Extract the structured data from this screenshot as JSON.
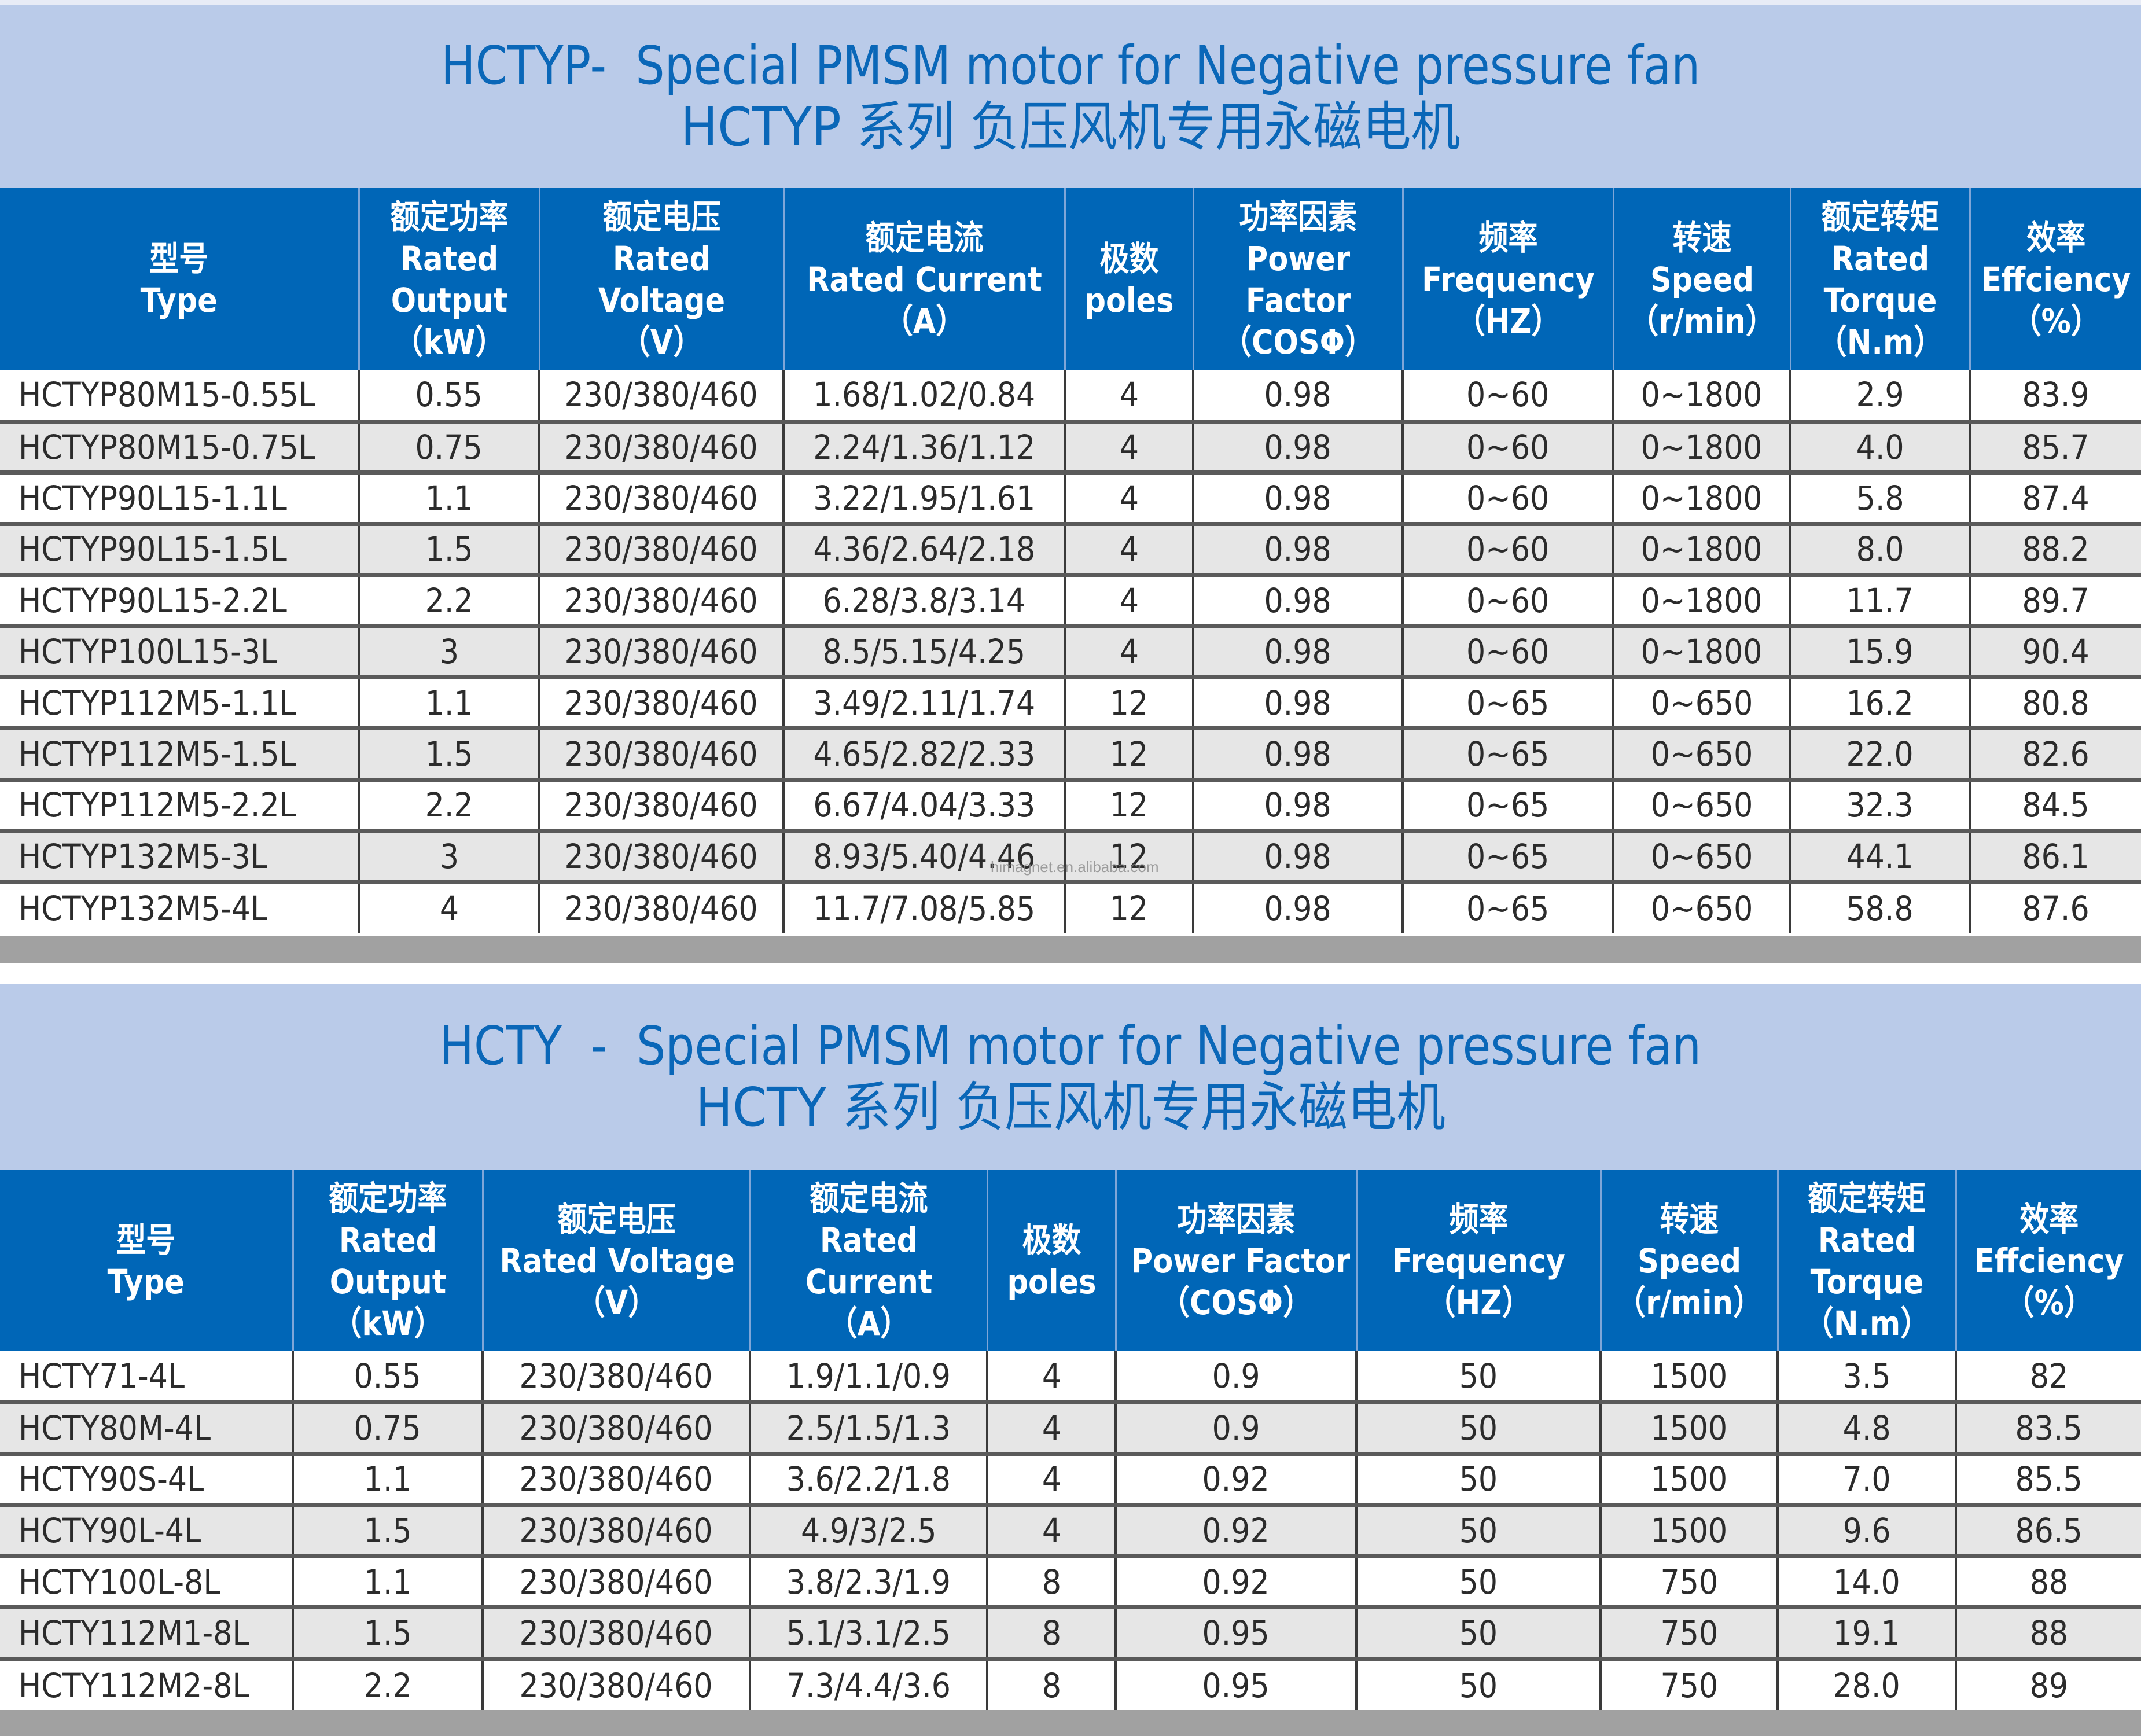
{
  "colors": {
    "title_band_bg": "#bacbe9",
    "title_text": "#0a67b8",
    "header_bg": "#0066b7",
    "header_text": "#ffffff",
    "row_even_bg": "#e6e6e6",
    "row_odd_bg": "#ffffff",
    "footer_band": "#a1a1a1"
  },
  "watermark": "himagnet.en.alibaba.com",
  "tables": [
    {
      "title_en": "HCTYP-  Special PMSM motor for Negative pressure fan",
      "title_cn": "HCTYP 系列 负压风机专用永磁电机",
      "headers": [
        {
          "lines": [
            "型号",
            "Type"
          ]
        },
        {
          "lines": [
            "额定功率",
            "Rated",
            "Output",
            "（kW）"
          ]
        },
        {
          "lines": [
            "额定电压",
            "Rated",
            "Voltage",
            "（V）"
          ]
        },
        {
          "lines": [
            "额定电流",
            "Rated Current",
            "（A）"
          ]
        },
        {
          "lines": [
            "极数",
            "poles"
          ]
        },
        {
          "lines": [
            "功率因素",
            "Power",
            "Factor",
            "（COSΦ）"
          ]
        },
        {
          "lines": [
            "频率",
            "Frequency",
            "（HZ）"
          ]
        },
        {
          "lines": [
            "转速",
            "Speed",
            "（r/min）"
          ]
        },
        {
          "lines": [
            "额定转矩",
            "Rated",
            "Torque",
            "（N.m）"
          ]
        },
        {
          "lines": [
            "效率",
            "Effciency",
            "（%）"
          ]
        }
      ],
      "rows": [
        [
          "HCTYP80M15-0.55L",
          "0.55",
          "230/380/460",
          "1.68/1.02/0.84",
          "4",
          "0.98",
          "0~60",
          "0~1800",
          "2.9",
          "83.9"
        ],
        [
          "HCTYP80M15-0.75L",
          "0.75",
          "230/380/460",
          "2.24/1.36/1.12",
          "4",
          "0.98",
          "0~60",
          "0~1800",
          "4.0",
          "85.7"
        ],
        [
          "HCTYP90L15-1.1L",
          "1.1",
          "230/380/460",
          "3.22/1.95/1.61",
          "4",
          "0.98",
          "0~60",
          "0~1800",
          "5.8",
          "87.4"
        ],
        [
          "HCTYP90L15-1.5L",
          "1.5",
          "230/380/460",
          "4.36/2.64/2.18",
          "4",
          "0.98",
          "0~60",
          "0~1800",
          "8.0",
          "88.2"
        ],
        [
          "HCTYP90L15-2.2L",
          "2.2",
          "230/380/460",
          "6.28/3.8/3.14",
          "4",
          "0.98",
          "0~60",
          "0~1800",
          "11.7",
          "89.7"
        ],
        [
          "HCTYP100L15-3L",
          "3",
          "230/380/460",
          "8.5/5.15/4.25",
          "4",
          "0.98",
          "0~60",
          "0~1800",
          "15.9",
          "90.4"
        ],
        [
          "HCTYP112M5-1.1L",
          "1.1",
          "230/380/460",
          "3.49/2.11/1.74",
          "12",
          "0.98",
          "0~65",
          "0~650",
          "16.2",
          "80.8"
        ],
        [
          "HCTYP112M5-1.5L",
          "1.5",
          "230/380/460",
          "4.65/2.82/2.33",
          "12",
          "0.98",
          "0~65",
          "0~650",
          "22.0",
          "82.6"
        ],
        [
          "HCTYP112M5-2.2L",
          "2.2",
          "230/380/460",
          "6.67/4.04/3.33",
          "12",
          "0.98",
          "0~65",
          "0~650",
          "32.3",
          "84.5"
        ],
        [
          "HCTYP132M5-3L",
          "3",
          "230/380/460",
          "8.93/5.40/4.46",
          "12",
          "0.98",
          "0~65",
          "0~650",
          "44.1",
          "86.1"
        ],
        [
          "HCTYP132M5-4L",
          "4",
          "230/380/460",
          "11.7/7.08/5.85",
          "12",
          "0.98",
          "0~65",
          "0~650",
          "58.8",
          "87.6"
        ]
      ]
    },
    {
      "title_en": "HCTY  -  Special PMSM motor for Negative pressure fan",
      "title_cn": "HCTY 系列 负压风机专用永磁电机",
      "headers": [
        {
          "lines": [
            "型号",
            "Type"
          ]
        },
        {
          "lines": [
            "额定功率",
            "Rated",
            "Output",
            "（kW）"
          ]
        },
        {
          "lines": [
            "额定电压",
            "Rated Voltage",
            "（V）"
          ]
        },
        {
          "lines": [
            "额定电流",
            "Rated",
            "Current",
            "（A）"
          ]
        },
        {
          "lines": [
            "极数",
            "poles"
          ]
        },
        {
          "lines": [
            "功率因素",
            "Power Factor",
            "（COSΦ）"
          ]
        },
        {
          "lines": [
            "频率",
            "Frequency",
            "（HZ）"
          ]
        },
        {
          "lines": [
            "转速",
            "Speed",
            "（r/min）"
          ]
        },
        {
          "lines": [
            "额定转矩",
            "Rated",
            "Torque",
            "（N.m）"
          ]
        },
        {
          "lines": [
            "效率",
            "Effciency",
            "（%）"
          ]
        }
      ],
      "rows": [
        [
          "HCTY71-4L",
          "0.55",
          "230/380/460",
          "1.9/1.1/0.9",
          "4",
          "0.9",
          "50",
          "1500",
          "3.5",
          "82"
        ],
        [
          "HCTY80M-4L",
          "0.75",
          "230/380/460",
          "2.5/1.5/1.3",
          "4",
          "0.9",
          "50",
          "1500",
          "4.8",
          "83.5"
        ],
        [
          "HCTY90S-4L",
          "1.1",
          "230/380/460",
          "3.6/2.2/1.8",
          "4",
          "0.92",
          "50",
          "1500",
          "7.0",
          "85.5"
        ],
        [
          "HCTY90L-4L",
          "1.5",
          "230/380/460",
          "4.9/3/2.5",
          "4",
          "0.92",
          "50",
          "1500",
          "9.6",
          "86.5"
        ],
        [
          "HCTY100L-8L",
          "1.1",
          "230/380/460",
          "3.8/2.3/1.9",
          "8",
          "0.92",
          "50",
          "750",
          "14.0",
          "88"
        ],
        [
          "HCTY112M1-8L",
          "1.5",
          "230/380/460",
          "5.1/3.1/2.5",
          "8",
          "0.95",
          "50",
          "750",
          "19.1",
          "88"
        ],
        [
          "HCTY112M2-8L",
          "2.2",
          "230/380/460",
          "7.3/4.4/3.6",
          "8",
          "0.95",
          "50",
          "750",
          "28.0",
          "89"
        ]
      ]
    }
  ]
}
